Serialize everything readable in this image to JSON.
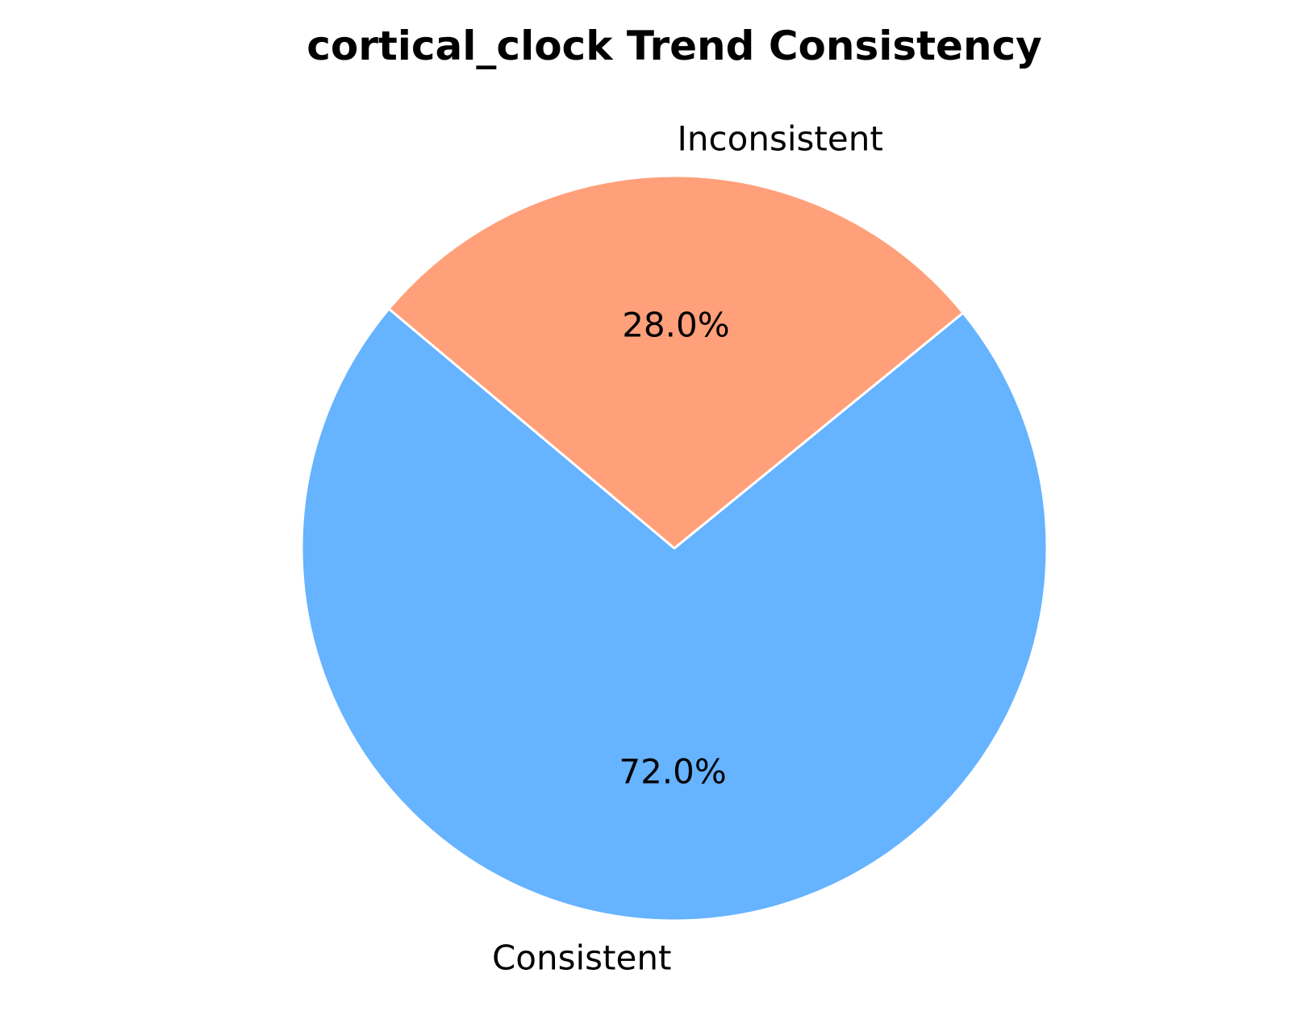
{
  "chart_data": {
    "type": "pie",
    "title": "cortical_clock Trend Consistency",
    "labels": [
      "Consistent",
      "Inconsistent"
    ],
    "values": [
      72.0,
      28.0
    ],
    "percent_labels": [
      "72.0%",
      "28.0%"
    ],
    "colors": [
      "#66b3ff",
      "#ffa07a"
    ],
    "start_angle_deg": 140,
    "direction": "counterclockwise",
    "edge_color": "#ffffff"
  }
}
